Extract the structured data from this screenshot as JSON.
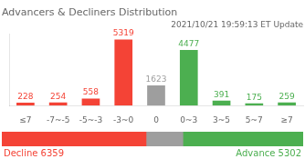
{
  "chart_data": [
    {
      "type": "bar",
      "title": "Advancers & Decliners Distribution",
      "subtitle": "2021/10/21 19:59:13 ET Update",
      "categories": [
        "≤7",
        "-7~-5",
        "-5~-3",
        "-3~0",
        "0",
        "0~3",
        "3~5",
        "5~7",
        "≥7"
      ],
      "values": [
        228,
        254,
        558,
        5319,
        1623,
        4477,
        391,
        175,
        259
      ],
      "colors": [
        "#f44336",
        "#f44336",
        "#f44336",
        "#f44336",
        "#9e9e9e",
        "#4caf50",
        "#4caf50",
        "#4caf50",
        "#4caf50"
      ],
      "ylim": [
        0,
        5800
      ],
      "tick_labels": "x",
      "data_labels": true,
      "grid": false
    },
    {
      "type": "bar",
      "orientation": "horizontal",
      "stacked": true,
      "categories": [
        null
      ],
      "series": [
        {
          "color": "#f44336",
          "values": [
            6359
          ]
        },
        {
          "color": "#9e9e9e",
          "values": [
            1623
          ]
        },
        {
          "color": "#4caf50",
          "values": [
            5302
          ]
        }
      ],
      "xlim": [
        0,
        13284
      ],
      "tick_labels": false,
      "grid": false,
      "annotations": [
        {
          "text": "Decline 6359",
          "color": "#f44336"
        },
        {
          "text": "Advance 5302",
          "color": "#4caf50"
        }
      ]
    }
  ]
}
